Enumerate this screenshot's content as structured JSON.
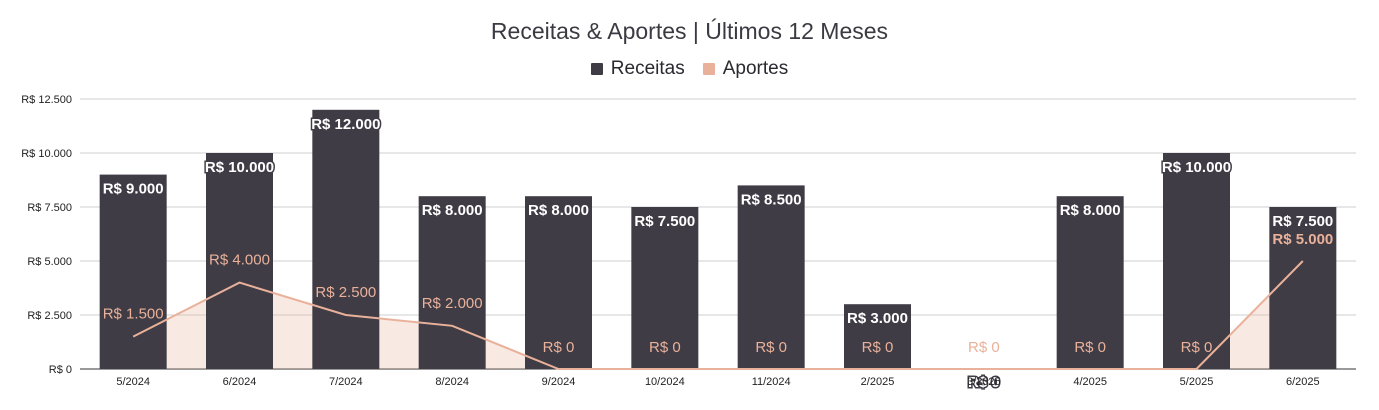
{
  "chart_data": {
    "type": "bar",
    "title": "Receitas & Aportes | Últimos 12 Meses",
    "categories": [
      "5/2024",
      "6/2024",
      "7/2024",
      "8/2024",
      "9/2024",
      "10/2024",
      "11/2024",
      "2/2025",
      "3/2025",
      "4/2025",
      "5/2025",
      "6/2025"
    ],
    "series": [
      {
        "name": "Receitas",
        "kind": "bar",
        "color": "#3f3c45",
        "values": [
          9000,
          10000,
          12000,
          8000,
          8000,
          7500,
          8500,
          3000,
          0,
          8000,
          10000,
          7500
        ],
        "labels": [
          "R$ 9.000",
          "R$ 10.000",
          "R$ 12.000",
          "R$ 8.000",
          "R$ 8.000",
          "R$ 7.500",
          "R$ 8.500",
          "R$ 3.000",
          "R$ 0",
          "R$ 8.000",
          "R$ 10.000",
          "R$ 7.500"
        ]
      },
      {
        "name": "Aportes",
        "kind": "area-line",
        "color": "#eab19a",
        "values": [
          1500,
          4000,
          2500,
          2000,
          0,
          0,
          0,
          0,
          0,
          0,
          0,
          5000
        ],
        "labels": [
          "R$ 1.500",
          "R$ 4.000",
          "R$ 2.500",
          "R$ 2.000",
          "R$ 0",
          "R$ 0",
          "R$ 0",
          "R$ 0",
          "R$ 0",
          "R$ 0",
          "R$ 0",
          "R$ 5.000"
        ]
      }
    ],
    "ylim": [
      0,
      12500
    ],
    "yticks": [
      0,
      2500,
      5000,
      7500,
      10000,
      12500
    ],
    "ytick_labels": [
      "R$ 0",
      "R$ 2.500",
      "R$ 5.000",
      "R$ 7.500",
      "R$ 10.000",
      "R$ 12.500"
    ],
    "grid": true,
    "legend": "top-center"
  }
}
